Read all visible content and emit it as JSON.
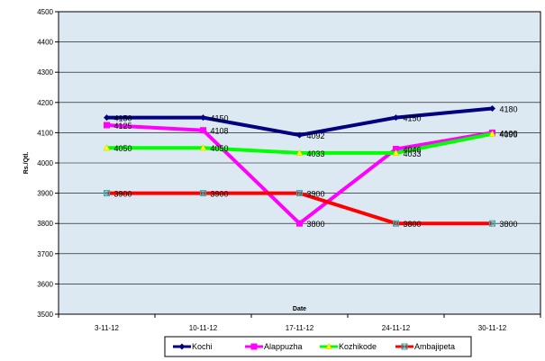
{
  "chart_data": {
    "type": "line",
    "title": "",
    "xlabel": "Date",
    "ylabel": "Rs./Qtl.",
    "categories": [
      "3-11-12",
      "10-11-12",
      "17-11-12",
      "24-11-12",
      "30-11-12"
    ],
    "ylim": [
      3500,
      4500
    ],
    "yticks": [
      3500,
      3600,
      3700,
      3800,
      3900,
      4000,
      4100,
      4200,
      4300,
      4400,
      4500
    ],
    "grid": true,
    "legend_position": "bottom",
    "plot_background": "#dde9f2",
    "series": [
      {
        "name": "Kochi",
        "color": "#000080",
        "marker": "diamond",
        "values": [
          4150,
          4150,
          4092,
          4150,
          4180
        ]
      },
      {
        "name": "Alappuzha",
        "color": "#ff00ff",
        "marker": "square",
        "values": [
          4125,
          4108,
          3800,
          4046,
          4100
        ]
      },
      {
        "name": "Kozhikode",
        "color": "#00ff00",
        "marker": "triangle",
        "values": [
          4050,
          4050,
          4033,
          4033,
          4096
        ]
      },
      {
        "name": "Ambajipeta",
        "color": "#ff0000",
        "marker": "x-square",
        "values": [
          3900,
          3900,
          3900,
          3800,
          3800
        ]
      }
    ]
  }
}
